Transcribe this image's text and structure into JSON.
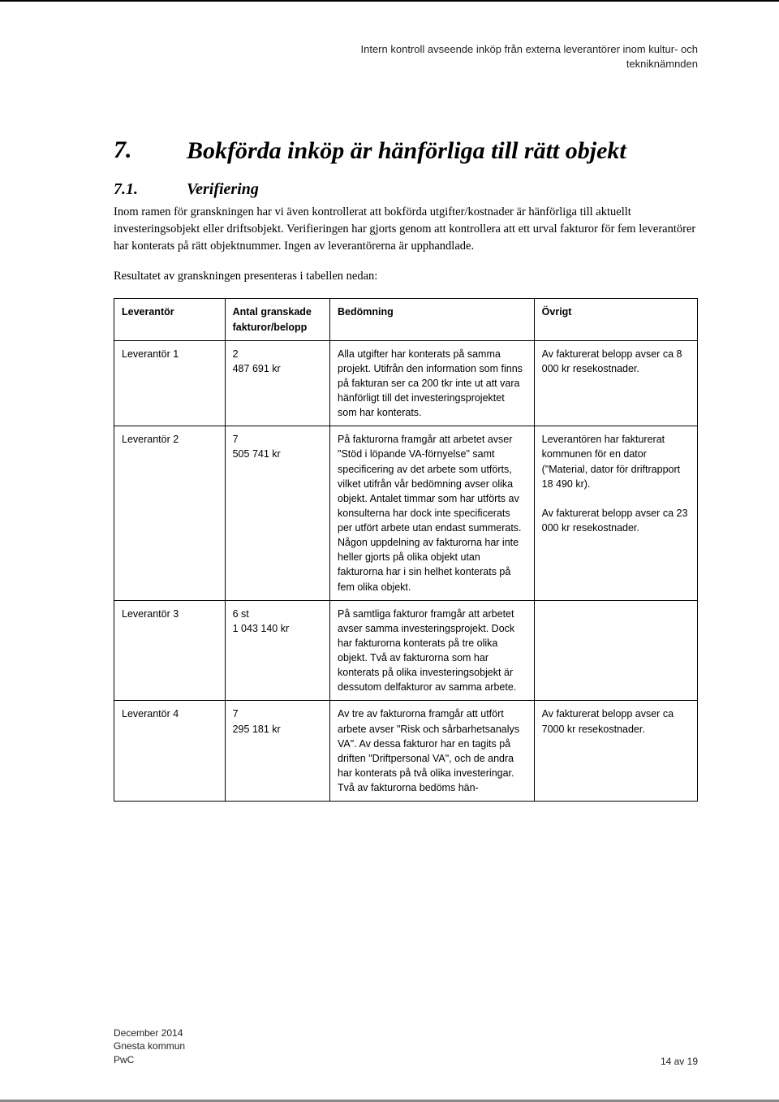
{
  "header": {
    "line1": "Intern kontroll avseende inköp från externa leverantörer inom kultur- och",
    "line2": "tekniknämnden"
  },
  "chapter": {
    "num": "7.",
    "title": "Bokförda inköp är hänförliga till rätt objekt"
  },
  "section": {
    "num": "7.1.",
    "title": "Verifiering"
  },
  "paragraphs": {
    "p1": "Inom ramen för granskningen har vi även kontrollerat att bokförda utgifter/kostnader är hänförliga till aktuellt investeringsobjekt eller driftsobjekt. Verifieringen har gjorts genom att kontrollera att ett urval fakturor för fem leverantörer har konterats på rätt objektnummer. Ingen av leverantörerna är upphandlade.",
    "p2": "Resultatet av granskningen presenteras i tabellen nedan:"
  },
  "table": {
    "headers": {
      "lev": "Leverantör",
      "antal": "Antal granskade fakturor/belopp",
      "bed": "Bedömning",
      "ovr": "Övrigt"
    },
    "rows": [
      {
        "lev": "Leverantör 1",
        "count": "2",
        "amount": "487 691 kr",
        "bed": "Alla utgifter har konterats på samma projekt. Utifrån den information som finns på fakturan ser ca 200 tkr inte ut att vara hänförligt till det investeringsprojektet som har konterats.",
        "ovr": "Av fakturerat belopp avser ca 8 000 kr resekostnader."
      },
      {
        "lev": "Leverantör 2",
        "count": "7",
        "amount": "505 741 kr",
        "bed": "På fakturorna framgår att arbetet avser \"Stöd i löpande VA-förnyelse\" samt specificering av det arbete som utförts, vilket utifrån vår bedömning avser olika objekt. Antalet timmar som har utförts av konsulterna har dock inte specificerats per utfört arbete utan endast summerats. Någon uppdelning av fakturorna har inte heller gjorts på olika objekt utan fakturorna har i sin helhet konterats på fem olika objekt.",
        "ovr": "Leverantören har fakturerat kommunen för en dator (\"Material, dator för driftrapport 18 490 kr).\n\nAv fakturerat belopp avser ca 23 000 kr resekostnader."
      },
      {
        "lev": "Leverantör 3",
        "count": "6 st",
        "amount": "1 043 140 kr",
        "bed": "På samtliga fakturor framgår att arbetet avser samma investeringsprojekt. Dock har fakturorna konterats på tre olika objekt. Två av fakturorna som har konterats på olika investeringsobjekt är dessutom delfakturor av samma arbete.",
        "ovr": ""
      },
      {
        "lev": "Leverantör 4",
        "count": "7",
        "amount": "295 181 kr",
        "bed": "Av tre av fakturorna framgår att utfört arbete avser \"Risk och sårbarhetsanalys VA\". Av dessa fakturor har en tagits på driften \"Driftpersonal VA\", och de andra har konterats på två olika investeringar.\nTvå av fakturorna bedöms hän-",
        "ovr": "Av fakturerat belopp avser ca 7000 kr resekostnader."
      }
    ]
  },
  "footer": {
    "date": "December 2014",
    "org": "Gnesta kommun",
    "firm": "PwC",
    "pageinfo": "14 av 19"
  }
}
